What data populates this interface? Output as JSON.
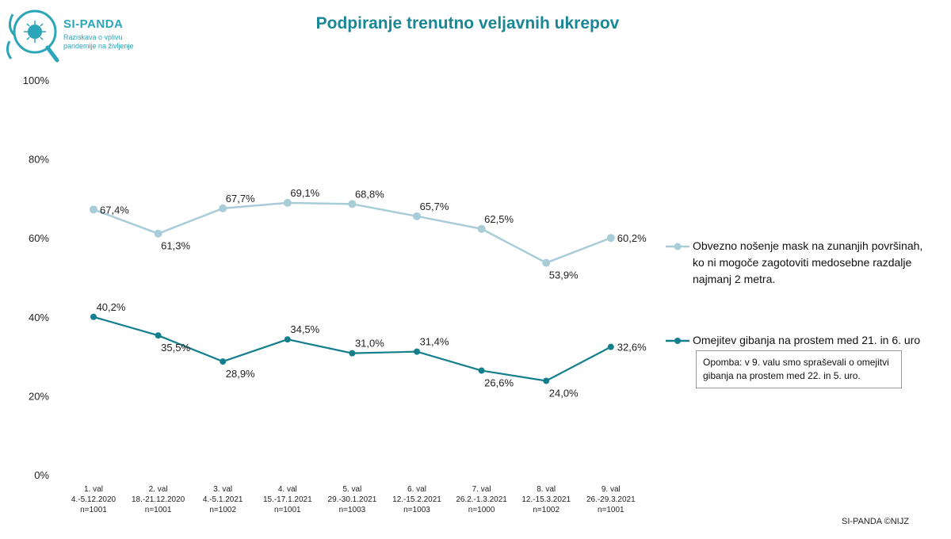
{
  "logo": {
    "name": "SI-PANDA",
    "tagline_1": "Raziskava o vplivu",
    "tagline_2": "pandemije na življenje"
  },
  "chart_data": {
    "type": "line",
    "title": "Podpiranje trenutno veljavnih ukrepov",
    "xlabel": "",
    "ylabel": "",
    "ylim": [
      0,
      100
    ],
    "yticks": [
      "0%",
      "20%",
      "40%",
      "60%",
      "80%",
      "100%"
    ],
    "grid": false,
    "legend_position": "right",
    "categories": [
      [
        "1. val",
        "4.-5.12.2020",
        "n=1001"
      ],
      [
        "2. val",
        "18.-21.12.2020",
        "n=1001"
      ],
      [
        "3. val",
        "4.-5.1.2021",
        "n=1002"
      ],
      [
        "4. val",
        "15.-17.1.2021",
        "n=1001"
      ],
      [
        "5. val",
        "29.-30.1.2021",
        "n=1003"
      ],
      [
        "6. val",
        "12.-15.2.2021",
        "n=1003"
      ],
      [
        "7. val",
        "26.2.-1.3.2021",
        "n=1000"
      ],
      [
        "8. val",
        "12.-15.3.2021",
        "n=1002"
      ],
      [
        "9. val",
        "26.-29.3.2021",
        "n=1001"
      ]
    ],
    "series": [
      {
        "name": "Obvezno nošenje mask na zunanjih površinah, ko ni mogoče zagotoviti medosebne razdalje najmanj 2 metra.",
        "name_lines": [
          "Obvezno nošenje mask na zunanjih površinah,",
          "ko ni mogoče zagotoviti medosebne razdalje",
          "najmanj 2 metra."
        ],
        "color": "#a9ccd9",
        "values": [
          67.4,
          61.3,
          67.7,
          69.1,
          68.8,
          65.7,
          62.5,
          53.9,
          60.2
        ],
        "labels": [
          "67,4%",
          "61,3%",
          "67,7%",
          "69,1%",
          "68,8%",
          "65,7%",
          "62,5%",
          "53,9%",
          "60,2%"
        ]
      },
      {
        "name": "Omejitev gibanja na prostem med 21. in 6. uro",
        "name_lines": [
          "Omejitev gibanja na prostem med 21. in 6. uro"
        ],
        "color": "#137f8c",
        "values": [
          40.2,
          35.5,
          28.9,
          34.5,
          31.0,
          31.4,
          26.6,
          24.0,
          32.6
        ],
        "labels": [
          "40,2%",
          "35,5%",
          "28,9%",
          "34,5%",
          "31,0%",
          "31,4%",
          "26,6%",
          "24,0%",
          "32,6%"
        ]
      }
    ],
    "annotation": {
      "line_1": "Opomba: v 9. valu smo spraševali o omejitvi",
      "line_2": "gibanja na prostem med 22. in 5. uro."
    }
  },
  "credit": "SI-PANDA ©NIJZ"
}
